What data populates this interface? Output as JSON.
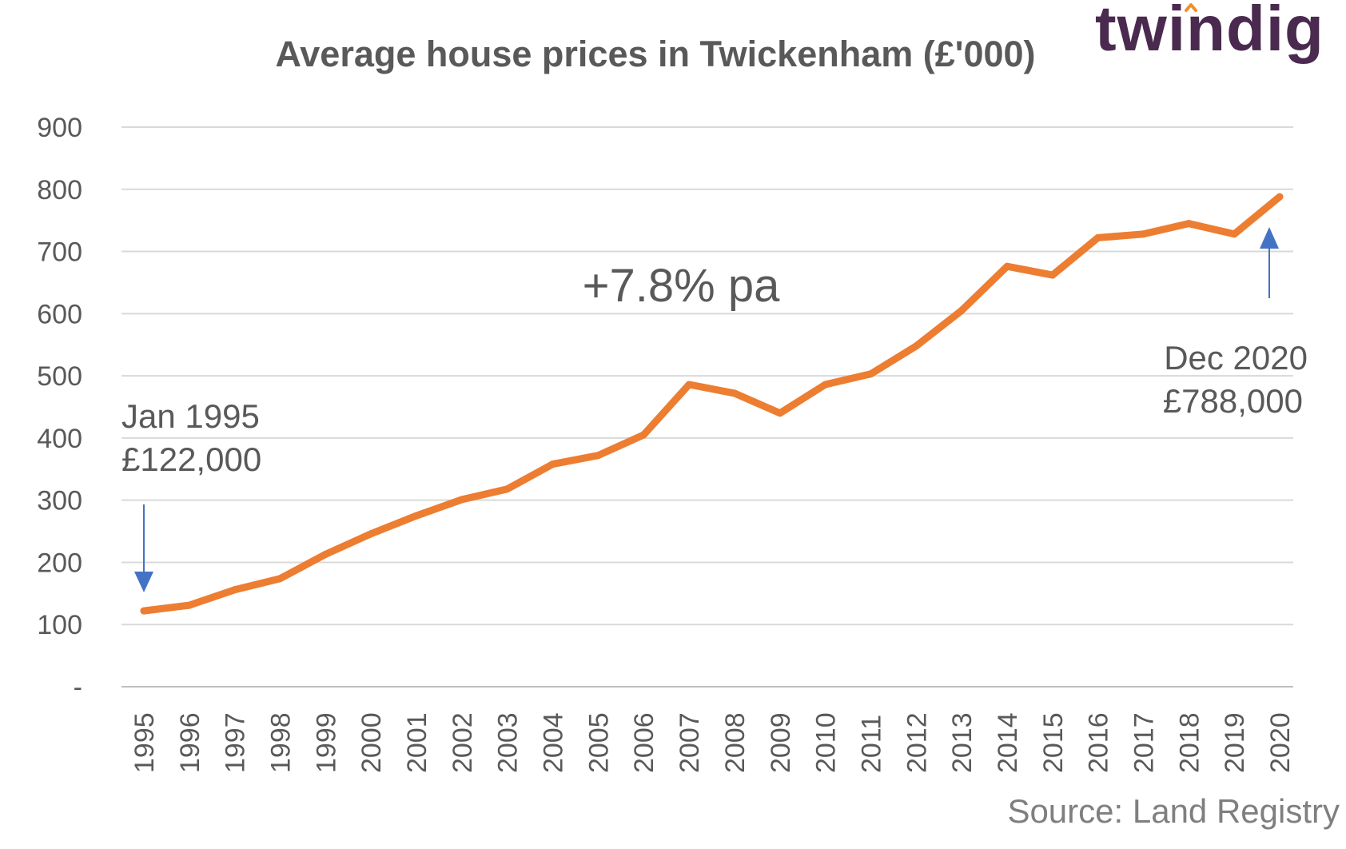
{
  "brand": {
    "name": "twindig",
    "accent_color": "#f28e2b",
    "text_color": "#4a2a4f"
  },
  "chart_data": {
    "type": "line",
    "title": "Average house prices in Twickenham (£'000)",
    "xlabel": "",
    "ylabel": "",
    "categories": [
      "1995",
      "1996",
      "1997",
      "1998",
      "1999",
      "2000",
      "2001",
      "2002",
      "2003",
      "2004",
      "2005",
      "2006",
      "2007",
      "2008",
      "2009",
      "2010",
      "2011",
      "2012",
      "2013",
      "2014",
      "2015",
      "2016",
      "2017",
      "2018",
      "2019",
      "2020"
    ],
    "series": [
      {
        "color": "#ed7d31",
        "values": [
          122,
          131,
          156,
          174,
          213,
          246,
          275,
          301,
          318,
          358,
          372,
          405,
          486,
          472,
          440,
          486,
          503,
          548,
          605,
          676,
          662,
          722,
          728,
          745,
          728,
          788
        ]
      }
    ],
    "ylim": [
      0,
      900
    ],
    "y_ticks": [
      "-",
      "100",
      "200",
      "300",
      "400",
      "500",
      "600",
      "700",
      "800",
      "900"
    ],
    "grid": true,
    "legend": "none",
    "annotations": {
      "start_label_line1": "Jan 1995",
      "start_label_line2": "£122,000",
      "end_label_line1": "Dec 2020",
      "end_label_line2": "£788,000",
      "growth_note": "+7.8% pa",
      "arrow_color": "#4472c4"
    },
    "source": "Source: Land Registry"
  }
}
